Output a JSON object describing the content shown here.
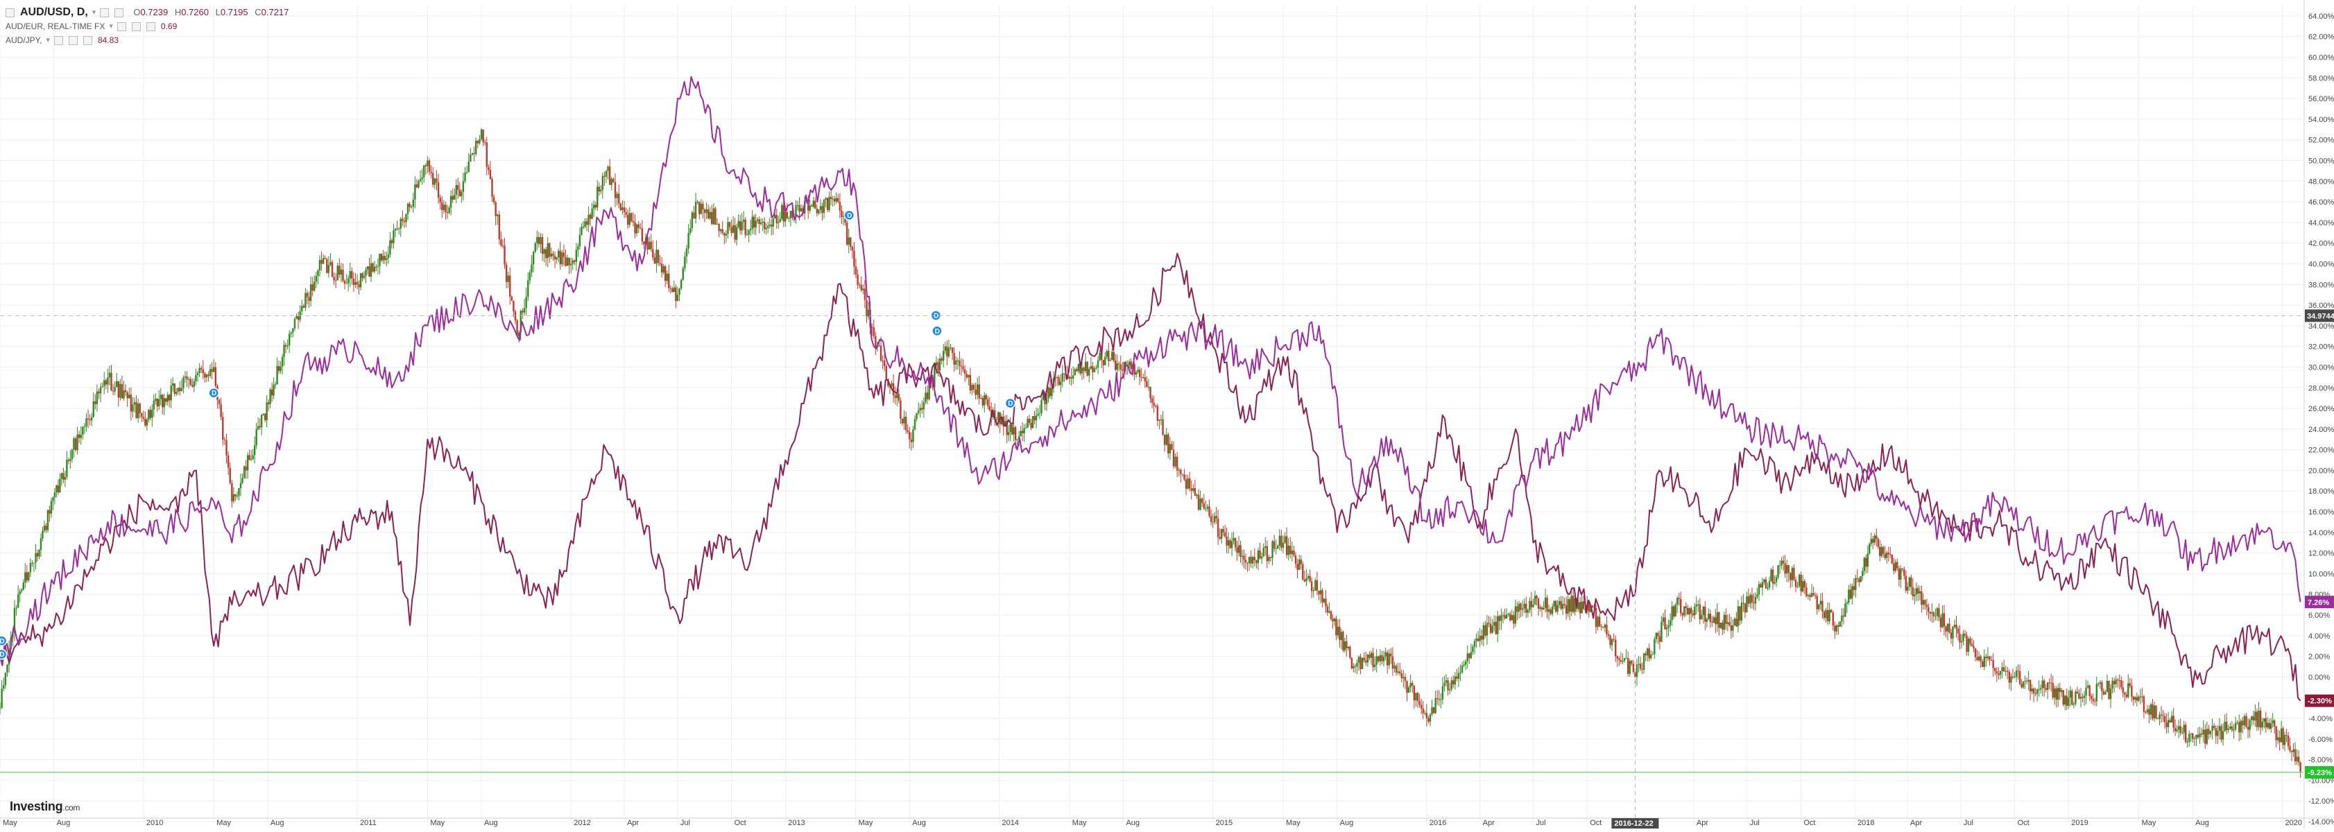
{
  "legend": {
    "main": {
      "symbol": "AUD/USD, D,",
      "open_label": "O",
      "open": "0.7239",
      "high_label": "H",
      "high": "0.7260",
      "low_label": "L",
      "low": "0.7195",
      "close_label": "C",
      "close": "0.7217"
    },
    "cmp1": {
      "symbol": "AUD/EUR, REAL-TIME FX",
      "value": "0.69"
    },
    "cmp2": {
      "symbol": "AUD/JPY,",
      "value": "84.83"
    }
  },
  "brand": {
    "name": "Investing",
    "suffix": ".com"
  },
  "crosshair": {
    "y_label": "34.9744",
    "x_label": "2016-12-22"
  },
  "badges": [
    {
      "text": "7.26%",
      "value": 7.26,
      "color": "#9b2c9e"
    },
    {
      "text": "-2.30%",
      "value": -2.3,
      "color": "#8b1a3a"
    },
    {
      "text": "-9.23%",
      "value": -9.23,
      "color": "#22c22a"
    }
  ],
  "colors": {
    "up": "#2e8b20",
    "down": "#c0392b",
    "aud_eur": "#8b2252",
    "aud_jpy": "#9b2c9e",
    "grid": "#eeeeee",
    "baseline": "#7fd87f"
  },
  "events": [
    {
      "date": "2009-05-04",
      "value": 3.5,
      "text": "D"
    },
    {
      "date": "2009-05-04",
      "value": 2.2,
      "text": "D"
    },
    {
      "date": "2010-05-01",
      "value": 27.5,
      "text": "D"
    },
    {
      "date": "2013-04-20",
      "value": 44.7,
      "text": "D"
    },
    {
      "date": "2013-09-15",
      "value": 35.0,
      "text": "D"
    },
    {
      "date": "2013-09-17",
      "value": 33.5,
      "text": "D"
    },
    {
      "date": "2014-01-20",
      "value": 26.5,
      "text": "D"
    }
  ],
  "chart_data": {
    "type": "line",
    "ylim": [
      -14,
      65
    ],
    "xlim": [
      "2009-05-01",
      "2020-02-05"
    ],
    "y_ticks": [
      -14,
      -12,
      -10,
      -8,
      -6,
      -4,
      -2,
      0,
      2,
      4,
      6,
      8,
      10,
      12,
      14,
      16,
      18,
      20,
      22,
      24,
      26,
      28,
      30,
      32,
      34,
      36,
      38,
      40,
      42,
      44,
      46,
      48,
      50,
      52,
      54,
      56,
      58,
      60,
      62,
      64
    ],
    "x_ticks": [
      {
        "date": "2009-05-01",
        "label": "May"
      },
      {
        "date": "2009-08-01",
        "label": "Aug"
      },
      {
        "date": "2010-01-01",
        "label": "2010"
      },
      {
        "date": "2010-05-01",
        "label": "May"
      },
      {
        "date": "2010-08-01",
        "label": "Aug"
      },
      {
        "date": "2011-01-01",
        "label": "2011"
      },
      {
        "date": "2011-05-01",
        "label": "May"
      },
      {
        "date": "2011-08-01",
        "label": "Aug"
      },
      {
        "date": "2012-01-01",
        "label": "2012"
      },
      {
        "date": "2012-04-01",
        "label": "Apr"
      },
      {
        "date": "2012-07-01",
        "label": "Jul"
      },
      {
        "date": "2012-10-01",
        "label": "Oct"
      },
      {
        "date": "2013-01-01",
        "label": "2013"
      },
      {
        "date": "2013-05-01",
        "label": "May"
      },
      {
        "date": "2013-08-01",
        "label": "Aug"
      },
      {
        "date": "2014-01-01",
        "label": "2014"
      },
      {
        "date": "2014-05-01",
        "label": "May"
      },
      {
        "date": "2014-08-01",
        "label": "Aug"
      },
      {
        "date": "2015-01-01",
        "label": "2015"
      },
      {
        "date": "2015-05-01",
        "label": "May"
      },
      {
        "date": "2015-08-01",
        "label": "Aug"
      },
      {
        "date": "2016-01-01",
        "label": "2016"
      },
      {
        "date": "2016-04-01",
        "label": "Apr"
      },
      {
        "date": "2016-07-01",
        "label": "Jul"
      },
      {
        "date": "2016-10-01",
        "label": "Oct"
      },
      {
        "date": "2017-04-01",
        "label": "Apr"
      },
      {
        "date": "2017-07-01",
        "label": "Jul"
      },
      {
        "date": "2017-10-01",
        "label": "Oct"
      },
      {
        "date": "2018-01-01",
        "label": "2018"
      },
      {
        "date": "2018-04-01",
        "label": "Apr"
      },
      {
        "date": "2018-07-01",
        "label": "Jul"
      },
      {
        "date": "2018-10-01",
        "label": "Oct"
      },
      {
        "date": "2019-01-01",
        "label": "2019"
      },
      {
        "date": "2019-05-01",
        "label": "May"
      },
      {
        "date": "2019-08-01",
        "label": "Aug"
      },
      {
        "date": "2020-01-01",
        "label": "2020"
      }
    ],
    "series": [
      {
        "name": "AUD/USD",
        "style": "candles",
        "points": [
          [
            "2009-05-01",
            -3
          ],
          [
            "2009-06-01",
            8
          ],
          [
            "2009-07-01",
            12
          ],
          [
            "2009-09-01",
            22
          ],
          [
            "2009-11-01",
            29
          ],
          [
            "2010-01-01",
            25
          ],
          [
            "2010-03-01",
            28
          ],
          [
            "2010-05-01",
            30
          ],
          [
            "2010-06-01",
            17
          ],
          [
            "2010-07-01",
            21
          ],
          [
            "2010-09-01",
            32
          ],
          [
            "2010-11-01",
            40
          ],
          [
            "2011-01-01",
            38
          ],
          [
            "2011-03-01",
            42
          ],
          [
            "2011-05-01",
            50
          ],
          [
            "2011-06-01",
            45
          ],
          [
            "2011-07-01",
            48
          ],
          [
            "2011-08-01",
            53
          ],
          [
            "2011-10-01",
            33
          ],
          [
            "2011-11-01",
            42
          ],
          [
            "2012-01-01",
            40
          ],
          [
            "2012-03-01",
            49
          ],
          [
            "2012-04-01",
            45
          ],
          [
            "2012-06-01",
            40
          ],
          [
            "2012-07-01",
            37
          ],
          [
            "2012-08-01",
            46
          ],
          [
            "2012-10-01",
            43
          ],
          [
            "2013-01-01",
            45
          ],
          [
            "2013-04-01",
            46
          ],
          [
            "2013-06-01",
            33
          ],
          [
            "2013-08-01",
            23
          ],
          [
            "2013-10-01",
            32
          ],
          [
            "2013-12-01",
            27
          ],
          [
            "2014-02-01",
            23
          ],
          [
            "2014-04-01",
            28
          ],
          [
            "2014-07-01",
            31
          ],
          [
            "2014-09-01",
            29
          ],
          [
            "2014-11-01",
            20
          ],
          [
            "2015-01-01",
            15
          ],
          [
            "2015-03-01",
            11
          ],
          [
            "2015-05-01",
            13
          ],
          [
            "2015-07-01",
            8
          ],
          [
            "2015-09-01",
            1
          ],
          [
            "2015-11-01",
            2
          ],
          [
            "2016-01-01",
            -4
          ],
          [
            "2016-04-01",
            4
          ],
          [
            "2016-07-01",
            7
          ],
          [
            "2016-10-01",
            7
          ],
          [
            "2016-12-22",
            0
          ],
          [
            "2017-03-01",
            7
          ],
          [
            "2017-06-01",
            5
          ],
          [
            "2017-09-01",
            11
          ],
          [
            "2017-12-01",
            5
          ],
          [
            "2018-02-01",
            13
          ],
          [
            "2018-05-01",
            7
          ],
          [
            "2018-08-01",
            2
          ],
          [
            "2018-10-01",
            0
          ],
          [
            "2019-01-01",
            -2
          ],
          [
            "2019-04-01",
            -1
          ],
          [
            "2019-08-01",
            -6
          ],
          [
            "2019-10-01",
            -5
          ],
          [
            "2019-12-01",
            -4
          ],
          [
            "2020-01-20",
            -7
          ],
          [
            "2020-02-01",
            -9.23
          ]
        ]
      },
      {
        "name": "AUD/EUR",
        "style": "line",
        "points": [
          [
            "2009-05-01",
            2
          ],
          [
            "2009-08-01",
            5
          ],
          [
            "2009-11-01",
            13
          ],
          [
            "2010-01-01",
            17
          ],
          [
            "2010-03-01",
            16
          ],
          [
            "2010-04-01",
            20
          ],
          [
            "2010-05-01",
            3
          ],
          [
            "2010-06-01",
            7
          ],
          [
            "2010-08-01",
            8
          ],
          [
            "2010-10-01",
            10
          ],
          [
            "2011-01-01",
            15
          ],
          [
            "2011-03-01",
            16
          ],
          [
            "2011-04-01",
            5
          ],
          [
            "2011-05-01",
            23
          ],
          [
            "2011-07-01",
            20
          ],
          [
            "2011-08-01",
            17
          ],
          [
            "2011-10-01",
            10
          ],
          [
            "2011-12-01",
            7
          ],
          [
            "2012-02-01",
            18
          ],
          [
            "2012-03-01",
            22
          ],
          [
            "2012-05-01",
            15
          ],
          [
            "2012-07-01",
            6
          ],
          [
            "2012-09-01",
            13
          ],
          [
            "2012-11-01",
            11
          ],
          [
            "2013-01-01",
            21
          ],
          [
            "2013-03-01",
            31
          ],
          [
            "2013-04-01",
            38
          ],
          [
            "2013-05-01",
            33
          ],
          [
            "2013-06-01",
            27
          ],
          [
            "2013-09-01",
            30
          ],
          [
            "2013-12-01",
            24
          ],
          [
            "2014-03-01",
            27
          ],
          [
            "2014-06-01",
            32
          ],
          [
            "2014-09-01",
            34
          ],
          [
            "2014-11-01",
            41
          ],
          [
            "2015-01-01",
            32
          ],
          [
            "2015-03-01",
            25
          ],
          [
            "2015-05-01",
            31
          ],
          [
            "2015-06-01",
            27
          ],
          [
            "2015-08-01",
            14
          ],
          [
            "2015-10-01",
            20
          ],
          [
            "2015-12-01",
            13
          ],
          [
            "2016-02-01",
            25
          ],
          [
            "2016-04-01",
            15
          ],
          [
            "2016-06-01",
            24
          ],
          [
            "2016-07-01",
            13
          ],
          [
            "2016-09-01",
            8
          ],
          [
            "2016-11-01",
            6
          ],
          [
            "2016-12-22",
            8
          ],
          [
            "2017-02-01",
            20
          ],
          [
            "2017-04-01",
            17
          ],
          [
            "2017-05-01",
            14
          ],
          [
            "2017-07-01",
            22
          ],
          [
            "2017-09-01",
            19
          ],
          [
            "2017-11-01",
            21
          ],
          [
            "2018-01-01",
            18
          ],
          [
            "2018-03-01",
            22
          ],
          [
            "2018-05-01",
            17
          ],
          [
            "2018-07-01",
            14
          ],
          [
            "2018-09-01",
            15
          ],
          [
            "2018-11-01",
            11
          ],
          [
            "2019-01-01",
            9
          ],
          [
            "2019-03-01",
            13
          ],
          [
            "2019-05-01",
            9
          ],
          [
            "2019-07-01",
            4
          ],
          [
            "2019-08-01",
            -1
          ],
          [
            "2019-10-01",
            3
          ],
          [
            "2019-12-01",
            4
          ],
          [
            "2020-01-15",
            2
          ],
          [
            "2020-02-01",
            -2.3
          ]
        ]
      },
      {
        "name": "AUD/JPY",
        "style": "line",
        "points": [
          [
            "2009-05-01",
            2
          ],
          [
            "2009-08-01",
            9
          ],
          [
            "2009-11-01",
            15
          ],
          [
            "2010-02-01",
            14
          ],
          [
            "2010-05-01",
            17
          ],
          [
            "2010-06-01",
            13
          ],
          [
            "2010-08-01",
            20
          ],
          [
            "2010-10-01",
            30
          ],
          [
            "2011-01-01",
            32
          ],
          [
            "2011-03-01",
            28
          ],
          [
            "2011-05-01",
            34
          ],
          [
            "2011-08-01",
            37
          ],
          [
            "2011-10-01",
            33
          ],
          [
            "2012-01-01",
            38
          ],
          [
            "2012-03-01",
            45
          ],
          [
            "2012-05-01",
            40
          ],
          [
            "2012-07-01",
            56
          ],
          [
            "2012-08-01",
            57
          ],
          [
            "2012-10-01",
            49
          ],
          [
            "2012-12-01",
            46
          ],
          [
            "2013-02-01",
            45
          ],
          [
            "2013-04-01",
            49
          ],
          [
            "2013-05-01",
            47
          ],
          [
            "2013-06-01",
            32
          ],
          [
            "2013-09-01",
            29
          ],
          [
            "2013-12-01",
            19
          ],
          [
            "2014-02-01",
            22
          ],
          [
            "2014-04-01",
            24
          ],
          [
            "2014-07-01",
            27
          ],
          [
            "2014-09-01",
            31
          ],
          [
            "2014-11-01",
            33
          ],
          [
            "2015-01-01",
            33
          ],
          [
            "2015-03-01",
            30
          ],
          [
            "2015-05-01",
            32
          ],
          [
            "2015-07-01",
            34
          ],
          [
            "2015-09-01",
            18
          ],
          [
            "2015-11-01",
            23
          ],
          [
            "2016-01-01",
            15
          ],
          [
            "2016-03-01",
            17
          ],
          [
            "2016-05-01",
            13
          ],
          [
            "2016-07-01",
            21
          ],
          [
            "2016-09-01",
            23
          ],
          [
            "2016-11-01",
            28
          ],
          [
            "2017-01-01",
            30
          ],
          [
            "2017-02-01",
            33
          ],
          [
            "2017-04-01",
            29
          ],
          [
            "2017-07-01",
            24
          ],
          [
            "2017-10-01",
            23
          ],
          [
            "2018-01-01",
            21
          ],
          [
            "2018-03-01",
            17
          ],
          [
            "2018-05-01",
            15
          ],
          [
            "2018-07-01",
            14
          ],
          [
            "2018-09-01",
            17
          ],
          [
            "2018-11-01",
            14
          ],
          [
            "2019-01-01",
            12
          ],
          [
            "2019-03-01",
            15
          ],
          [
            "2019-06-01",
            16
          ],
          [
            "2019-08-01",
            11
          ],
          [
            "2019-10-01",
            13
          ],
          [
            "2019-12-01",
            14
          ],
          [
            "2020-01-15",
            13
          ],
          [
            "2020-02-01",
            7.26
          ]
        ]
      }
    ]
  }
}
